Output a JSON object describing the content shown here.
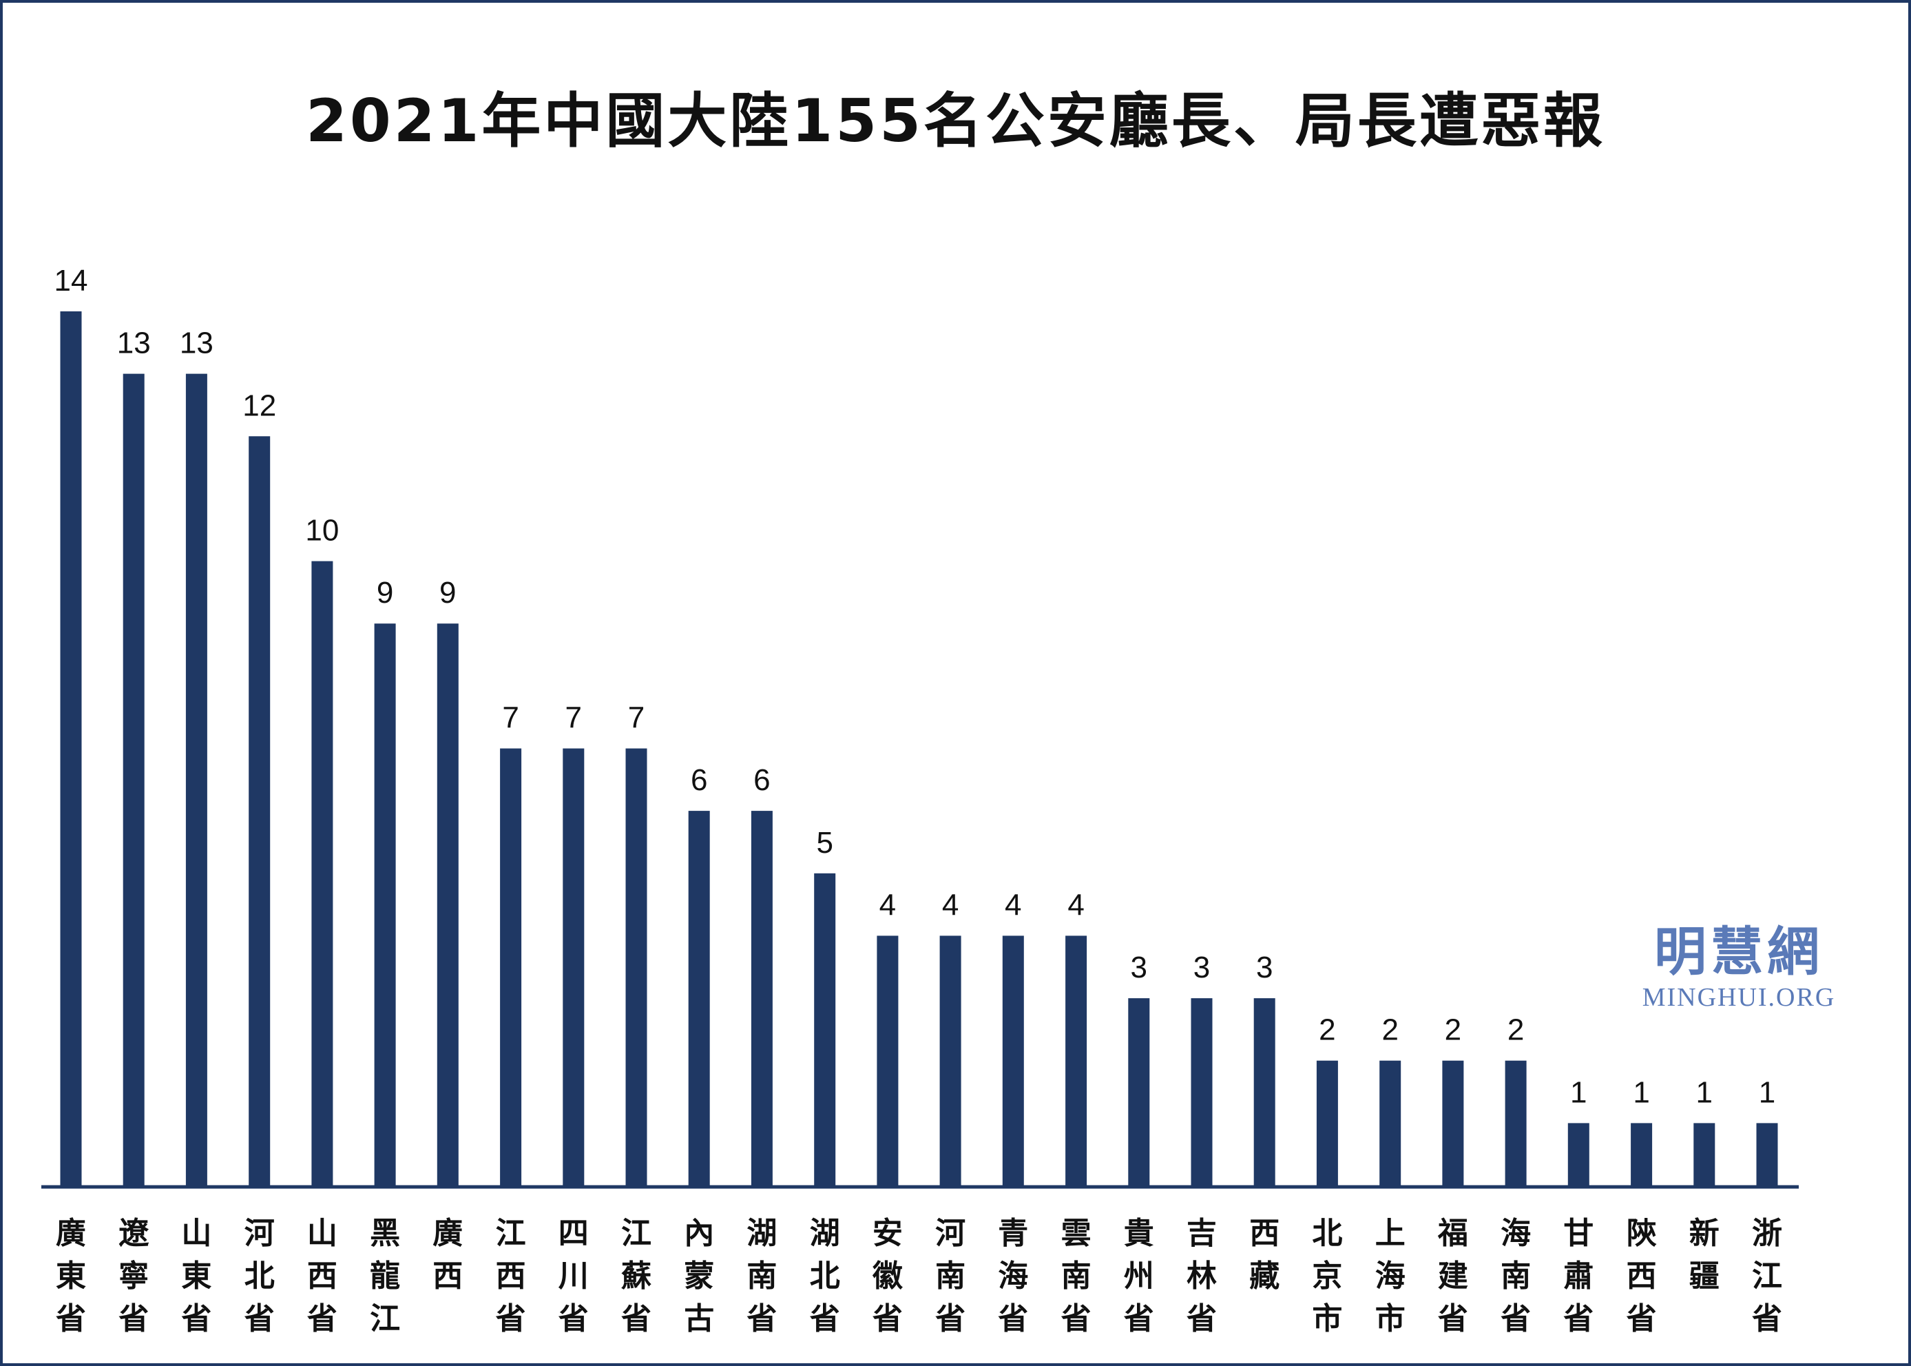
{
  "chart_data": {
    "type": "bar",
    "title": "2021年中國大陸155名公安廳長、局長遭惡報",
    "xlabel": "",
    "ylabel": "",
    "ylim": [
      0,
      14
    ],
    "grid": false,
    "legend": "none",
    "bar_color": "#1f3864",
    "categories": [
      "廣東省",
      "遼寧省",
      "山東省",
      "河北省",
      "山西省",
      "黑龍江",
      "廣西",
      "江西省",
      "四川省",
      "江蘇省",
      "內蒙古",
      "湖南省",
      "湖北省",
      "安徽省",
      "河南省",
      "青海省",
      "雲南省",
      "貴州省",
      "吉林省",
      "西藏",
      "北京市",
      "上海市",
      "福建省",
      "海南省",
      "甘肅省",
      "陝西省",
      "新疆",
      "浙江省"
    ],
    "values": [
      14,
      13,
      13,
      12,
      10,
      9,
      9,
      7,
      7,
      7,
      6,
      6,
      5,
      4,
      4,
      4,
      4,
      3,
      3,
      3,
      2,
      2,
      2,
      2,
      1,
      1,
      1,
      1
    ]
  },
  "watermark": {
    "chinese": "明慧網",
    "english": "MINGHUI.ORG"
  },
  "colors": {
    "bar": "#1f3864",
    "axis": "#1f3864",
    "border": "#1f3864",
    "watermark": "#5a7ab8"
  }
}
